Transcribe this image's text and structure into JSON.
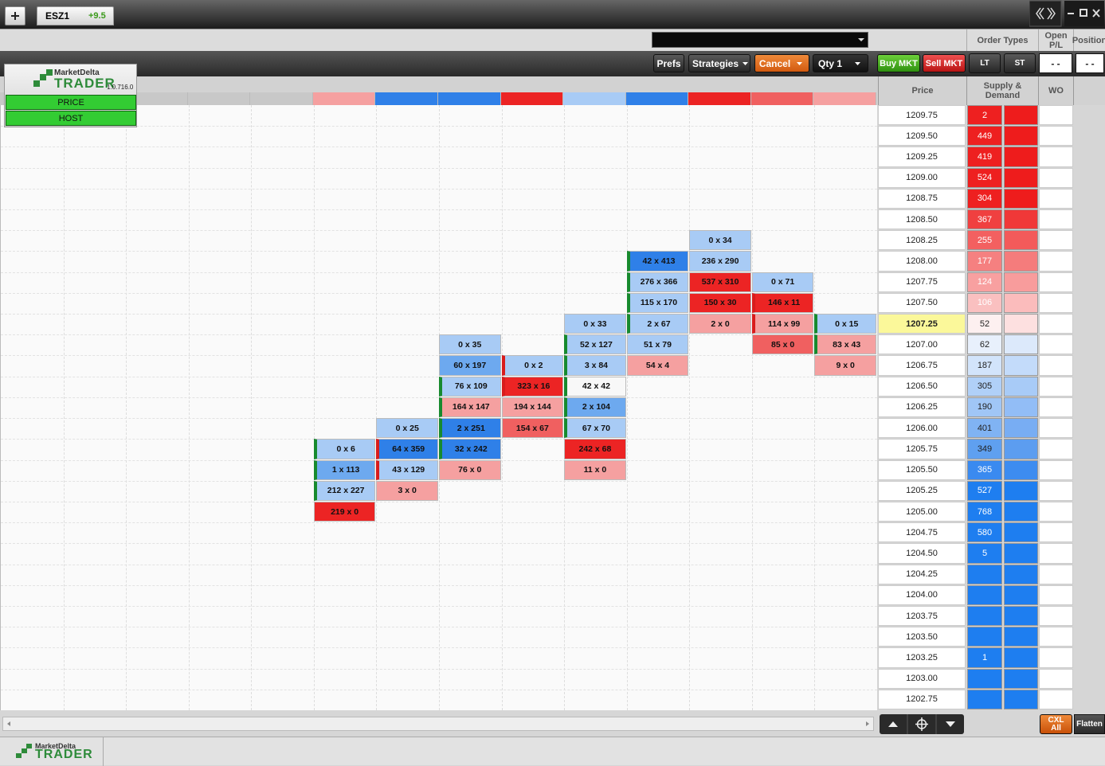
{
  "tab": {
    "symbol": "ESZ1",
    "change": "+9.5"
  },
  "toolbar": {
    "prefs": "Prefs",
    "strategies": "Strategies",
    "cancel": "Cancel",
    "qty": "Qty 1",
    "buy": "Buy MKT",
    "sell": "Sell MKT",
    "lt": "LT",
    "st": "ST",
    "pl": "- -",
    "position": "- -"
  },
  "logo": {
    "brand": "MarketDelta",
    "product": "TRADER",
    "version": "1.0.716.0",
    "buttons": [
      "PRICE",
      "HOST"
    ]
  },
  "headers": {
    "order_types": "Order Types",
    "open_pl": "Open P/L",
    "position": "Position",
    "price": "Price",
    "supply_demand": "Supply & Demand",
    "wo": "WO"
  },
  "grid": {
    "columns": [
      {
        "header_color": "#c8c8c8",
        "cells": []
      },
      {
        "header_color": "#c8c8c8",
        "cells": []
      },
      {
        "header_color": "#c8c8c8",
        "cells": []
      },
      {
        "header_color": "#c8c8c8",
        "cells": []
      },
      {
        "header_color": "#c8c8c8",
        "cells": []
      },
      {
        "header_color": "#f5a0a0",
        "cells": [
          null,
          null,
          null,
          null,
          null,
          null,
          null,
          null,
          null,
          null,
          null,
          null,
          null,
          null,
          null,
          null,
          {
            "text": "0 x 6",
            "color": "#a8cbf5",
            "edge": "#178a2e"
          },
          {
            "text": "1 x 113",
            "color": "#6da9ef",
            "edge": "#178a2e"
          },
          {
            "text": "212 x 227",
            "color": "#a8cbf5",
            "edge": "#178a2e"
          },
          {
            "text": "219 x 0",
            "color": "#ec2424"
          }
        ]
      },
      {
        "header_color": "#2f80e8",
        "cells": [
          null,
          null,
          null,
          null,
          null,
          null,
          null,
          null,
          null,
          null,
          null,
          null,
          null,
          null,
          null,
          {
            "text": "0 x 25",
            "color": "#a8cbf5"
          },
          {
            "text": "64 x 359",
            "color": "#2f80e8",
            "edge": "#d81c1c"
          },
          {
            "text": "43 x 129",
            "color": "#a8cbf5",
            "edge": "#d81c1c"
          },
          {
            "text": "3 x 0",
            "color": "#f5a0a0"
          }
        ]
      },
      {
        "header_color": "#2f80e8",
        "cells": [
          null,
          null,
          null,
          null,
          null,
          null,
          null,
          null,
          null,
          null,
          null,
          {
            "text": "0 x 35",
            "color": "#a8cbf5"
          },
          {
            "text": "60 x 197",
            "color": "#6da9ef"
          },
          {
            "text": "76 x 109",
            "color": "#a8cbf5",
            "edge": "#178a2e"
          },
          {
            "text": "164 x 147",
            "color": "#f5a0a0",
            "edge": "#178a2e"
          },
          {
            "text": "2 x 251",
            "color": "#2f80e8",
            "edge": "#178a2e"
          },
          {
            "text": "32 x 242",
            "color": "#2f80e8",
            "edge": "#178a2e"
          },
          {
            "text": "76 x 0",
            "color": "#f5a0a0"
          }
        ]
      },
      {
        "header_color": "#ec2424",
        "cells": [
          null,
          null,
          null,
          null,
          null,
          null,
          null,
          null,
          null,
          null,
          null,
          null,
          {
            "text": "0 x 2",
            "color": "#a8cbf5",
            "edge": "#d81c1c"
          },
          {
            "text": "323 x 16",
            "color": "#ec2424",
            "edge": "#d81c1c"
          },
          {
            "text": "194 x 144",
            "color": "#f5a0a0"
          },
          {
            "text": "154 x 67",
            "color": "#f06060"
          }
        ]
      },
      {
        "header_color": "#a8cbf5",
        "cells": [
          null,
          null,
          null,
          null,
          null,
          null,
          null,
          null,
          null,
          null,
          {
            "text": "0 x 33",
            "color": "#a8cbf5"
          },
          {
            "text": "52 x 127",
            "color": "#a8cbf5",
            "edge": "#178a2e"
          },
          {
            "text": "3 x 84",
            "color": "#a8cbf5",
            "edge": "#178a2e"
          },
          {
            "text": "42 x 42",
            "color": "#f8f8f8",
            "edge": "#178a2e"
          },
          {
            "text": "2 x 104",
            "color": "#6da9ef",
            "edge": "#178a2e"
          },
          {
            "text": "67 x 70",
            "color": "#a8cbf5",
            "edge": "#178a2e"
          },
          {
            "text": "242 x 68",
            "color": "#ec2424"
          },
          {
            "text": "11 x 0",
            "color": "#f5a0a0"
          }
        ]
      },
      {
        "header_color": "#2f80e8",
        "cells": [
          null,
          null,
          null,
          null,
          null,
          null,
          null,
          {
            "text": "42 x 413",
            "color": "#2f80e8",
            "edge": "#178a2e"
          },
          {
            "text": "276 x 366",
            "color": "#a8cbf5",
            "edge": "#178a2e"
          },
          {
            "text": "115 x 170",
            "color": "#a8cbf5",
            "edge": "#178a2e"
          },
          {
            "text": "2 x 67",
            "color": "#a8cbf5",
            "edge": "#178a2e"
          },
          {
            "text": "51 x 79",
            "color": "#a8cbf5"
          },
          {
            "text": "54 x 4",
            "color": "#f5a0a0"
          }
        ]
      },
      {
        "header_color": "#ec2424",
        "cells": [
          null,
          null,
          null,
          null,
          null,
          null,
          {
            "text": "0 x 34",
            "color": "#a8cbf5"
          },
          {
            "text": "236 x 290",
            "color": "#a8cbf5"
          },
          {
            "text": "537 x 310",
            "color": "#ec2424"
          },
          {
            "text": "150 x 30",
            "color": "#ec2424"
          },
          {
            "text": "2 x 0",
            "color": "#f5a0a0"
          }
        ]
      },
      {
        "header_color": "#f06060",
        "cells": [
          null,
          null,
          null,
          null,
          null,
          null,
          null,
          null,
          {
            "text": "0 x 71",
            "color": "#a8cbf5"
          },
          {
            "text": "146 x 11",
            "color": "#ec2424",
            "edge": "#d81c1c"
          },
          {
            "text": "114 x 99",
            "color": "#f5a0a0",
            "edge": "#d81c1c"
          },
          {
            "text": "85 x 0",
            "color": "#f06060"
          }
        ]
      },
      {
        "header_color": "#f5a0a0",
        "cells": [
          null,
          null,
          null,
          null,
          null,
          null,
          null,
          null,
          null,
          null,
          {
            "text": "0 x 15",
            "color": "#a8cbf5",
            "edge": "#178a2e"
          },
          {
            "text": "83 x 43",
            "color": "#f5a0a0",
            "edge": "#178a2e"
          },
          {
            "text": "9 x 0",
            "color": "#f5a0a0"
          }
        ]
      }
    ]
  },
  "ladder": {
    "rows": [
      {
        "price": "1209.75",
        "sd": 2,
        "sd_color": "#ee2020",
        "bar_color": "#ee1c1c"
      },
      {
        "price": "1209.50",
        "sd": 449,
        "sd_color": "#ee2020",
        "bar_color": "#ee1c1c"
      },
      {
        "price": "1209.25",
        "sd": 419,
        "sd_color": "#ee2020",
        "bar_color": "#ee1c1c"
      },
      {
        "price": "1209.00",
        "sd": 524,
        "sd_color": "#ee2020",
        "bar_color": "#ee1c1c"
      },
      {
        "price": "1208.75",
        "sd": 304,
        "sd_color": "#ee2020",
        "bar_color": "#ee1c1c"
      },
      {
        "price": "1208.50",
        "sd": 367,
        "sd_color": "#f04040",
        "bar_color": "#f03838"
      },
      {
        "price": "1208.25",
        "sd": 255,
        "sd_color": "#f36060",
        "bar_color": "#f35a5a"
      },
      {
        "price": "1208.00",
        "sd": 177,
        "sd_color": "#f58080",
        "bar_color": "#f57c7c"
      },
      {
        "price": "1207.75",
        "sd": 124,
        "sd_color": "#f8a0a0",
        "bar_color": "#f89c9c"
      },
      {
        "price": "1207.50",
        "sd": 106,
        "sd_color": "#fac0c0",
        "bar_color": "#fbbcbc"
      },
      {
        "price": "1207.25",
        "sd": 52,
        "sd_color": "#fdf0f0",
        "bar_color": "#fde0e0",
        "current": true
      },
      {
        "price": "1207.00",
        "sd": 62,
        "sd_color": "#e8f0fc",
        "bar_color": "#dce9fb"
      },
      {
        "price": "1206.75",
        "sd": 187,
        "sd_color": "#d2e4fb",
        "bar_color": "#c3dbfa"
      },
      {
        "price": "1206.50",
        "sd": 305,
        "sd_color": "#b0d0f8",
        "bar_color": "#a8cbf7"
      },
      {
        "price": "1206.25",
        "sd": 190,
        "sd_color": "#a0c6f6",
        "bar_color": "#92bdf6"
      },
      {
        "price": "1206.00",
        "sd": 401,
        "sd_color": "#80b3f3",
        "bar_color": "#78adf3"
      },
      {
        "price": "1205.75",
        "sd": 349,
        "sd_color": "#5fa0f0",
        "bar_color": "#5c9df0"
      },
      {
        "price": "1205.50",
        "sd": 365,
        "sd_color": "#3a8af0",
        "bar_color": "#3d8cf0"
      },
      {
        "price": "1205.25",
        "sd": 527,
        "sd_color": "#1e7ef0",
        "bar_color": "#1e7ef0"
      },
      {
        "price": "1205.00",
        "sd": 768,
        "sd_color": "#1e7ef0",
        "bar_color": "#1e7ef0"
      },
      {
        "price": "1204.75",
        "sd": 580,
        "sd_color": "#1e7ef0",
        "bar_color": "#1e7ef0"
      },
      {
        "price": "1204.50",
        "sd": 5,
        "sd_color": "#1e7ef0",
        "bar_color": "#1e7ef0"
      },
      {
        "price": "1204.25",
        "sd": null,
        "sd_color": "#1e7ef0",
        "bar_color": "#1e7ef0"
      },
      {
        "price": "1204.00",
        "sd": null,
        "sd_color": "#1e7ef0",
        "bar_color": "#1e7ef0"
      },
      {
        "price": "1203.75",
        "sd": null,
        "sd_color": "#1e7ef0",
        "bar_color": "#1e7ef0"
      },
      {
        "price": "1203.50",
        "sd": null,
        "sd_color": "#1e7ef0",
        "bar_color": "#1e7ef0"
      },
      {
        "price": "1203.25",
        "sd": 1,
        "sd_color": "#1e7ef0",
        "bar_color": "#1e7ef0"
      },
      {
        "price": "1203.00",
        "sd": null,
        "sd_color": "#1e7ef0",
        "bar_color": "#1e7ef0"
      },
      {
        "price": "1202.75",
        "sd": null,
        "sd_color": "#1e7ef0",
        "bar_color": "#1e7ef0"
      }
    ]
  },
  "buttons": {
    "cxl": "CXL All",
    "flatten": "Flatten"
  },
  "footer": {
    "brand": "MarketDelta",
    "product": "TRADER"
  }
}
